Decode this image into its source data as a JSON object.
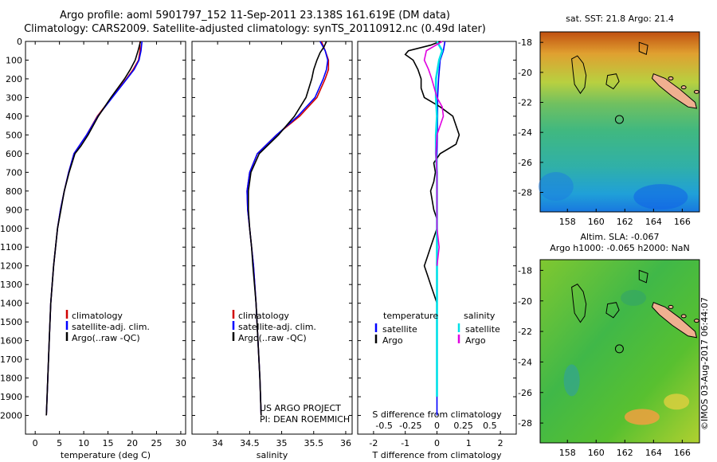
{
  "header": {
    "title": "Argo profile: aoml 5901797_152 11-Sep-2011 23.138S 161.619E (DM data)",
    "subtitle": "Climatology: CARS2009. Satellite-adjusted climatology: synTS_20110912.nc (0.49d later)"
  },
  "footer": {
    "stamp": "©IMOS 03-Aug-2017 06:44:07"
  },
  "colors": {
    "climatology": "#d00000",
    "satellite": "#0000ff",
    "argo": "#000000",
    "satellite_salinity": "#00e0e8",
    "argo_salinity": "#e000e0"
  },
  "chart_data": [
    {
      "type": "line",
      "xlabel": "temperature (deg C)",
      "ylabel": "",
      "xlim": [
        -2,
        31
      ],
      "ylim": [
        2100,
        0
      ],
      "xticks": [
        0,
        5,
        10,
        15,
        20,
        25,
        30
      ],
      "yticks": [
        0,
        100,
        200,
        300,
        400,
        500,
        600,
        700,
        800,
        900,
        1000,
        1100,
        1200,
        1300,
        1400,
        1500,
        1600,
        1700,
        1800,
        1900,
        2000
      ],
      "legend": {
        "entries": [
          "climatology",
          "satellite-adj. clim.",
          "Argo(..raw -QC)"
        ],
        "position": "lower-right"
      },
      "series": [
        {
          "name": "climatology",
          "depth": [
            0,
            50,
            100,
            150,
            200,
            300,
            400,
            500,
            600,
            700,
            800,
            900,
            1000,
            1200,
            1400,
            1600,
            1800,
            2000
          ],
          "values": [
            21.6,
            21.6,
            21.3,
            20.2,
            18.8,
            15.8,
            12.8,
            10.6,
            8.0,
            6.9,
            6.0,
            5.2,
            4.6,
            3.8,
            3.2,
            2.9,
            2.6,
            2.3
          ]
        },
        {
          "name": "satellite-adj. clim.",
          "depth": [
            0,
            50,
            100,
            150,
            200,
            300,
            400,
            500,
            600,
            700,
            800,
            900,
            1000,
            1200,
            1400,
            1600,
            1800,
            2000
          ],
          "values": [
            22.0,
            21.8,
            21.4,
            20.4,
            18.9,
            15.9,
            12.9,
            10.6,
            8.0,
            6.9,
            6.0,
            5.2,
            4.6,
            3.8,
            3.2,
            2.9,
            2.6,
            2.3
          ]
        },
        {
          "name": "Argo(..raw -QC)",
          "depth": [
            0,
            50,
            100,
            150,
            200,
            300,
            400,
            500,
            560,
            600,
            700,
            800,
            900,
            1000,
            1200,
            1400,
            1600,
            1800,
            2000
          ],
          "values": [
            21.7,
            21.2,
            20.6,
            19.6,
            18.4,
            15.6,
            13.0,
            10.9,
            9.4,
            8.2,
            7.0,
            6.0,
            5.3,
            4.6,
            3.8,
            3.2,
            2.9,
            2.6,
            2.3
          ]
        }
      ]
    },
    {
      "type": "line",
      "xlabel": "salinity",
      "ylabel": "",
      "xlim": [
        33.6,
        36.1
      ],
      "ylim": [
        2100,
        0
      ],
      "xticks": [
        34,
        34.5,
        35,
        35.5,
        36
      ],
      "legend": {
        "entries": [
          "climatology",
          "satellite-adj. clim.",
          "Argo(..raw -QC)"
        ],
        "position": "lower-right"
      },
      "annotations": [
        "US ARGO PROJECT",
        "PI: DEAN ROEMMICH"
      ],
      "series": [
        {
          "name": "climatology",
          "depth": [
            0,
            50,
            100,
            150,
            200,
            300,
            400,
            500,
            600,
            700,
            800,
            900,
            1000,
            1200,
            1400,
            1600,
            1800,
            2000
          ],
          "values": [
            35.62,
            35.68,
            35.73,
            35.73,
            35.68,
            35.55,
            35.28,
            34.92,
            34.62,
            34.5,
            34.46,
            34.47,
            34.5,
            34.56,
            34.6,
            34.63,
            34.66,
            34.68
          ]
        },
        {
          "name": "satellite-adj. clim.",
          "depth": [
            0,
            50,
            100,
            150,
            200,
            300,
            400,
            500,
            600,
            700,
            800,
            900,
            1000,
            1200,
            1400,
            1600,
            1800,
            2000
          ],
          "values": [
            35.6,
            35.68,
            35.72,
            35.7,
            35.65,
            35.52,
            35.25,
            34.92,
            34.62,
            34.5,
            34.46,
            34.47,
            34.5,
            34.56,
            34.6,
            34.63,
            34.66,
            34.68
          ]
        },
        {
          "name": "Argo(..raw -QC)",
          "depth": [
            0,
            30,
            60,
            100,
            150,
            200,
            300,
            400,
            500,
            600,
            700,
            800,
            900,
            1000,
            1100,
            1200,
            1400,
            1600,
            1800,
            2000
          ],
          "values": [
            35.7,
            35.66,
            35.6,
            35.55,
            35.5,
            35.47,
            35.38,
            35.2,
            34.95,
            34.65,
            34.52,
            34.48,
            34.48,
            34.5,
            34.53,
            34.55,
            34.6,
            34.63,
            34.66,
            34.68
          ]
        }
      ]
    },
    {
      "type": "line",
      "xlabel": "T difference from climatology",
      "xlabel2": "S difference from climatology",
      "ylabel": "",
      "xlim": [
        -2.5,
        2.5
      ],
      "ylim": [
        2100,
        0
      ],
      "xticks": [
        -2,
        -1,
        0,
        1,
        2
      ],
      "xticks2": [
        -0.5,
        -0.25,
        0,
        0.25,
        0.5
      ],
      "legend": {
        "headers": [
          "temperature",
          "salinity"
        ],
        "entries": [
          "satellite",
          "Argo",
          "satellite",
          "Argo"
        ],
        "position": "lower"
      },
      "series": [
        {
          "name": "satellite",
          "depth": [
            0,
            50,
            100,
            200,
            300,
            400,
            500,
            600,
            800,
            1000,
            1200,
            1400,
            1600,
            1800,
            2000
          ],
          "values": [
            0.25,
            0.2,
            0.1,
            0.05,
            0.02,
            0.02,
            0.01,
            0.0,
            0.0,
            0.0,
            0.0,
            0.0,
            0.0,
            0.0,
            0.0
          ]
        },
        {
          "name": "Argo",
          "depth": [
            0,
            20,
            50,
            70,
            100,
            150,
            200,
            250,
            300,
            350,
            400,
            450,
            500,
            550,
            600,
            650,
            700,
            750,
            800,
            850,
            900,
            950,
            1000,
            1050,
            1100,
            1150,
            1200,
            1250,
            1300,
            1350,
            1400
          ],
          "values": [
            0.1,
            -0.2,
            -0.9,
            -1.0,
            -0.75,
            -0.6,
            -0.5,
            -0.5,
            -0.4,
            0.1,
            0.5,
            0.6,
            0.7,
            0.6,
            0.1,
            -0.1,
            -0.05,
            -0.1,
            -0.2,
            -0.15,
            -0.1,
            0.0,
            0.0,
            -0.1,
            -0.2,
            -0.3,
            -0.4,
            -0.3,
            -0.2,
            -0.1,
            0.0
          ]
        },
        {
          "name": "satellite",
          "depth": [
            0,
            50,
            100,
            200,
            300,
            400,
            500,
            600,
            700,
            800,
            1000,
            1200,
            1400,
            1600,
            1800,
            1900
          ],
          "values": [
            0.0,
            0.05,
            0.02,
            -0.01,
            -0.01,
            0.0,
            -0.01,
            -0.01,
            0.0,
            0.0,
            0.0,
            0.0,
            0.0,
            0.0,
            0.0,
            0.0
          ]
        },
        {
          "name": "Argo",
          "depth": [
            0,
            50,
            100,
            150,
            200,
            300,
            350,
            400,
            450,
            500,
            600,
            700,
            800,
            1000,
            1100,
            1200
          ],
          "values": [
            0.05,
            -0.1,
            -0.12,
            -0.08,
            -0.05,
            0.0,
            0.05,
            0.06,
            0.03,
            0.0,
            -0.01,
            0.0,
            0.0,
            0.0,
            0.02,
            0.0
          ]
        }
      ]
    },
    {
      "type": "heatmap",
      "title": "sat. SST: 21.8 Argo: 21.4",
      "xticks": [
        158,
        160,
        162,
        164,
        166
      ],
      "yticks": [
        -18,
        -20,
        -22,
        -24,
        -26,
        -28
      ],
      "xlim": [
        156.1,
        167.2
      ],
      "ylim": [
        -29.3,
        -17.3
      ],
      "marker": {
        "lon": 161.619,
        "lat": -23.138
      }
    },
    {
      "type": "heatmap",
      "title": "Altim. SLA: -0.067",
      "subtitle": "Argo h1000: -0.065 h2000: NaN",
      "xticks": [
        158,
        160,
        162,
        164,
        166
      ],
      "yticks": [
        -18,
        -20,
        -22,
        -24,
        -26,
        -28
      ],
      "xlim": [
        156.1,
        167.2
      ],
      "ylim": [
        -29.3,
        -17.3
      ],
      "marker": {
        "lon": 161.619,
        "lat": -23.138
      }
    }
  ]
}
